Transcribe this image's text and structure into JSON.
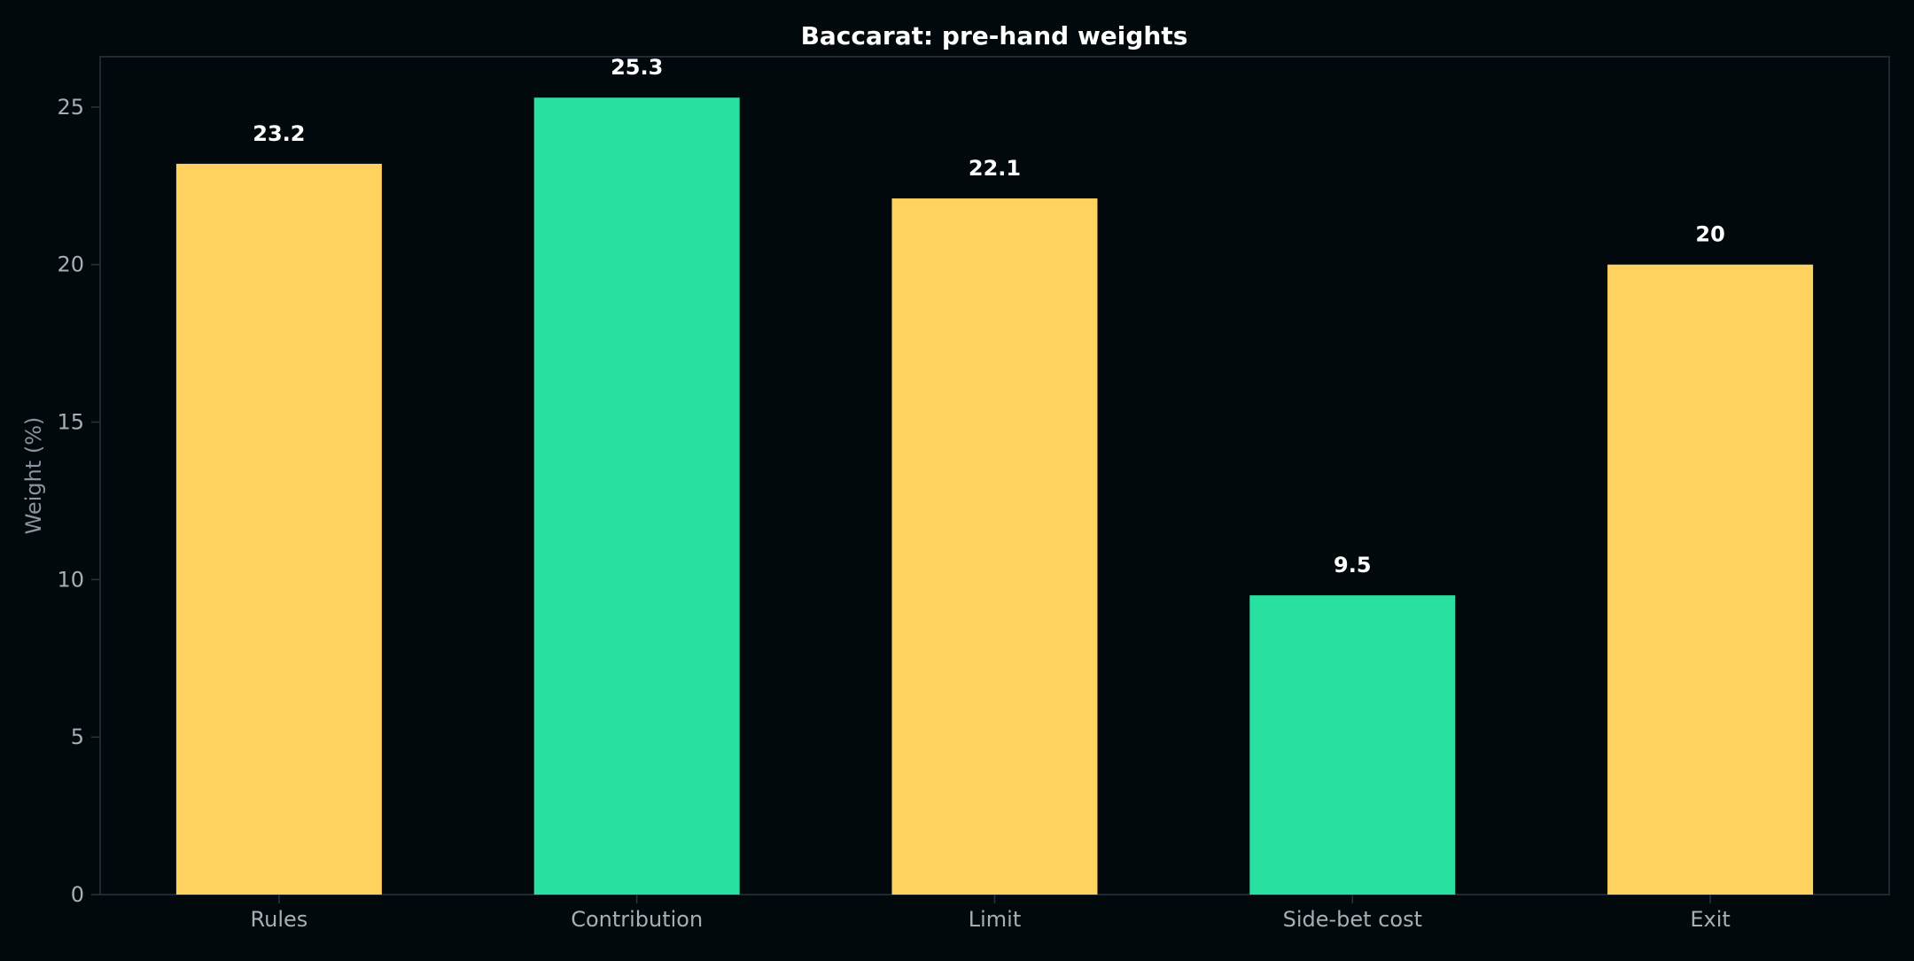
{
  "chart_data": {
    "type": "bar",
    "title": "Baccarat: pre-hand weights",
    "xlabel": "",
    "ylabel": "Weight (%)",
    "categories": [
      "Rules",
      "Contribution",
      "Limit",
      "Side-bet cost",
      "Exit"
    ],
    "values": [
      23.2,
      25.3,
      22.1,
      9.5,
      20
    ],
    "value_labels": [
      "23.2",
      "25.3",
      "22.1",
      "9.5",
      "20"
    ],
    "bar_colors": [
      "#ffd15f",
      "#28e0a0",
      "#ffd15f",
      "#28e0a0",
      "#ffd15f"
    ],
    "ylim": [
      0,
      26.6
    ],
    "yticks": [
      0,
      5,
      10,
      15,
      20,
      25
    ],
    "grid": false,
    "legend": "none"
  },
  "colors": {
    "background": "#02090c",
    "axes_frame": "#2a3340",
    "tick_text": "#a7aeb6",
    "title_text": "#ffffff"
  }
}
